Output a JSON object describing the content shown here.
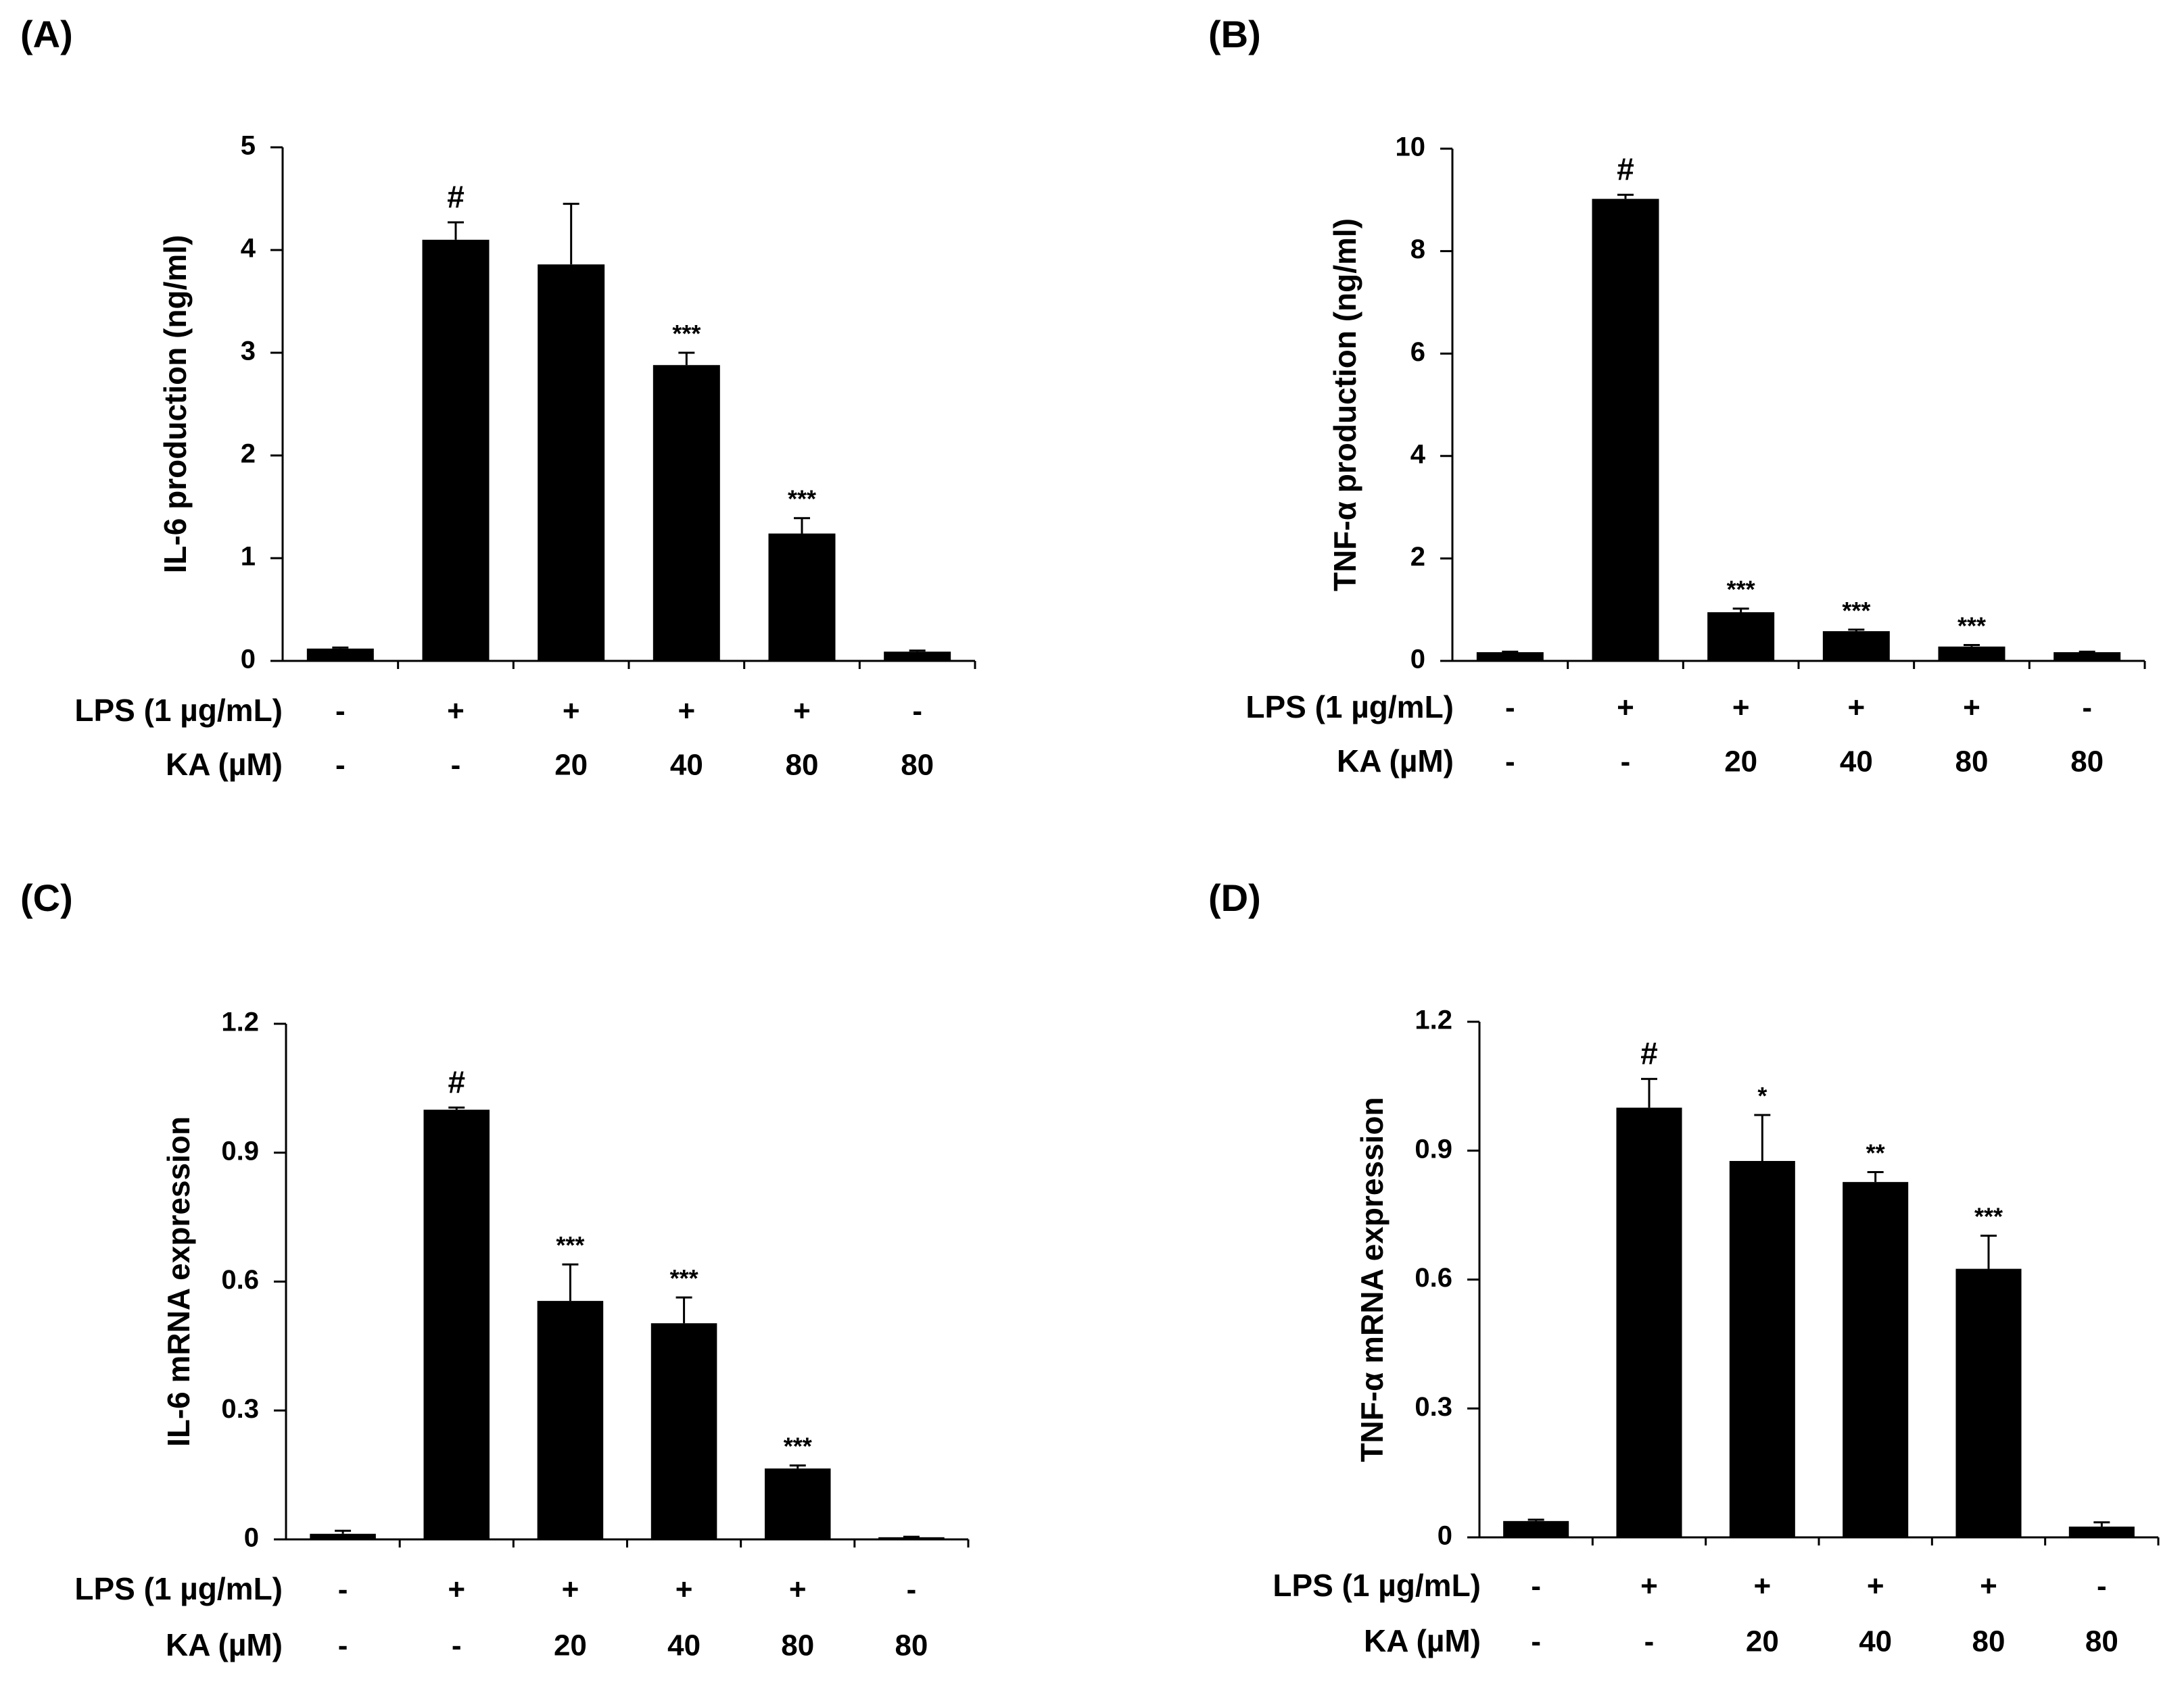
{
  "chart_data": [
    {
      "type": "bar",
      "panel": "(A)",
      "ylabel": "IL-6 production (ng/ml)",
      "ylim": [
        0,
        5
      ],
      "yticks": [
        "0",
        "1",
        "2",
        "3",
        "4",
        "5"
      ],
      "rows": [
        {
          "label": "LPS (1 µg/mL)",
          "values": [
            "-",
            "+",
            "+",
            "+",
            "+",
            "-"
          ]
        },
        {
          "label": "KA (µM)",
          "values": [
            "-",
            "-",
            "20",
            "40",
            "80",
            "80"
          ]
        }
      ],
      "values": [
        0.12,
        4.1,
        3.86,
        2.88,
        1.24,
        0.09
      ],
      "errors": [
        0.01,
        0.17,
        0.59,
        0.12,
        0.15,
        0.01
      ],
      "annotations": [
        "",
        "#",
        "",
        "***",
        "***",
        ""
      ],
      "bar_color": "#000000"
    },
    {
      "type": "bar",
      "panel": "(B)",
      "ylabel": "TNF-α production (ng/ml)",
      "ylim": [
        0,
        10
      ],
      "yticks": [
        "0",
        "2",
        "4",
        "6",
        "8",
        "10"
      ],
      "rows": [
        {
          "label": "LPS (1 µg/mL)",
          "values": [
            "-",
            "+",
            "+",
            "+",
            "+",
            "-"
          ]
        },
        {
          "label": "KA (µM)",
          "values": [
            "-",
            "-",
            "20",
            "40",
            "80",
            "80"
          ]
        }
      ],
      "values": [
        0.17,
        9.02,
        0.95,
        0.58,
        0.28,
        0.17
      ],
      "errors": [
        0.01,
        0.08,
        0.07,
        0.03,
        0.03,
        0.01
      ],
      "annotations": [
        "",
        "#",
        "***",
        "***",
        "***",
        ""
      ],
      "bar_color": "#000000"
    },
    {
      "type": "bar",
      "panel": "(C)",
      "ylabel": "IL-6 mRNA expression",
      "ylim": [
        0,
        1.2
      ],
      "yticks": [
        "0",
        "0.3",
        "0.6",
        "0.9",
        "1.2"
      ],
      "rows": [
        {
          "label": "LPS (1 µg/mL)",
          "values": [
            "-",
            "+",
            "+",
            "+",
            "+",
            "-"
          ]
        },
        {
          "label": "KA (µM)",
          "values": [
            "-",
            "-",
            "20",
            "40",
            "80",
            "80"
          ]
        }
      ],
      "values": [
        0.013,
        1.0,
        0.555,
        0.503,
        0.165,
        0.005
      ],
      "errors": [
        0.007,
        0.005,
        0.085,
        0.06,
        0.007,
        0.001
      ],
      "annotations": [
        "",
        "#",
        "***",
        "***",
        "***",
        ""
      ],
      "bar_color": "#000000"
    },
    {
      "type": "bar",
      "panel": "(D)",
      "ylabel": "TNF-α mRNA expression",
      "ylim": [
        0,
        1.2
      ],
      "yticks": [
        "0",
        "0.3",
        "0.6",
        "0.9",
        "1.2"
      ],
      "rows": [
        {
          "label": "LPS (1 µg/mL)",
          "values": [
            "-",
            "+",
            "+",
            "+",
            "+",
            "-"
          ]
        },
        {
          "label": "KA (µM)",
          "values": [
            "-",
            "-",
            "20",
            "40",
            "80",
            "80"
          ]
        }
      ],
      "values": [
        0.038,
        1.0,
        0.876,
        0.827,
        0.625,
        0.025
      ],
      "errors": [
        0.003,
        0.067,
        0.107,
        0.023,
        0.077,
        0.01
      ],
      "annotations": [
        "",
        "#",
        "*",
        "**",
        "***",
        ""
      ],
      "bar_color": "#000000"
    }
  ]
}
